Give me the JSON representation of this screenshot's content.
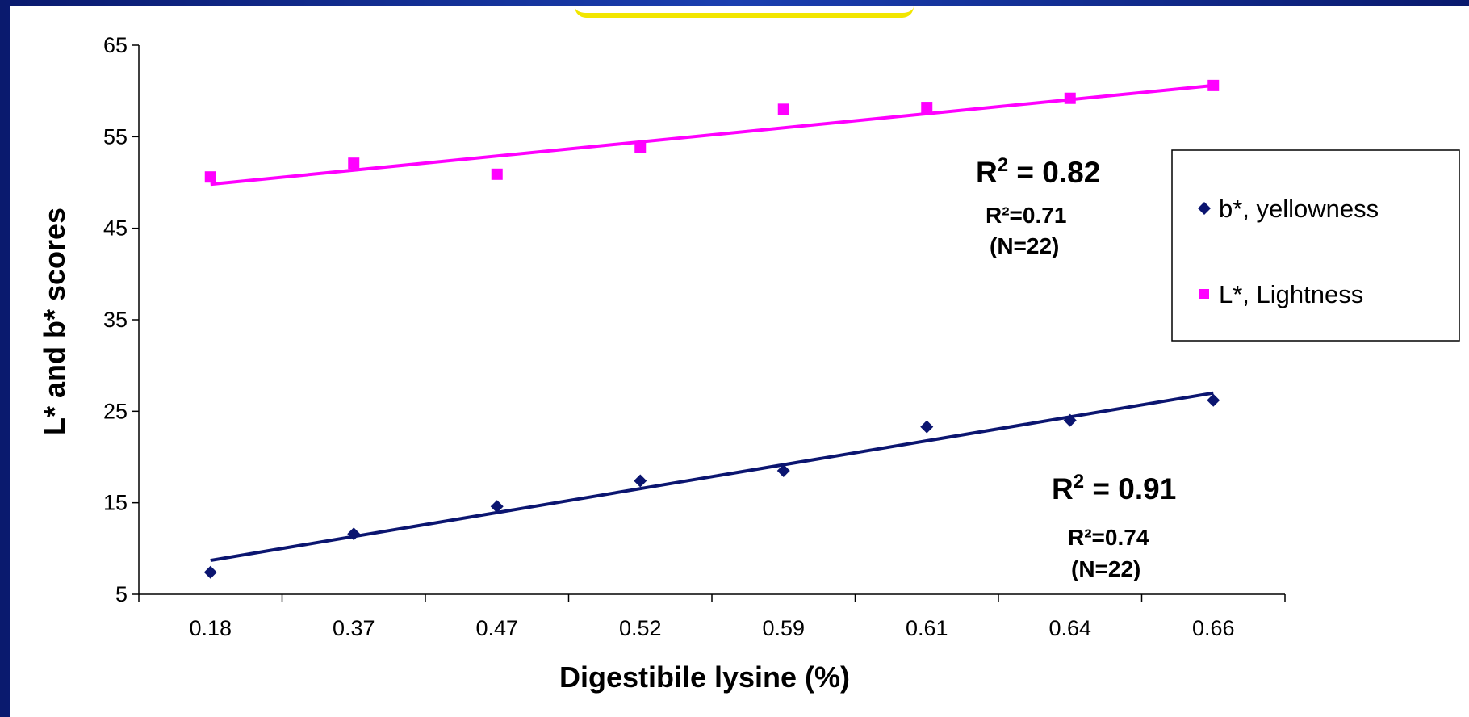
{
  "chart_data": {
    "type": "scatter",
    "title": "",
    "xlabel": "Digestibile lysine (%)",
    "ylabel": "L* and b* scores",
    "categories": [
      "0.18",
      "0.37",
      "0.47",
      "0.52",
      "0.59",
      "0.61",
      "0.64",
      "0.66"
    ],
    "ylim": [
      5,
      65
    ],
    "yticks": [
      "5",
      "15",
      "25",
      "35",
      "45",
      "55",
      "65"
    ],
    "grid": false,
    "legend_position": "right",
    "series": [
      {
        "name": "b*, yellowness",
        "marker": "diamond",
        "color": "#0b1570",
        "values": [
          7.4,
          11.6,
          14.6,
          17.4,
          18.5,
          23.3,
          24.0,
          26.2
        ],
        "trendline": [
          8.7,
          27.0
        ]
      },
      {
        "name": "L*, Lightness",
        "marker": "square",
        "color": "#ff00ff",
        "values": [
          50.6,
          52.1,
          50.9,
          53.8,
          58.0,
          58.2,
          59.2,
          60.6
        ],
        "trendline": [
          49.8,
          60.6
        ]
      }
    ],
    "annotations": {
      "l_r2_main": "0.82",
      "l_r2_sub": "R²=0.71",
      "l_n": "(N=22)",
      "b_r2_main": "0.91",
      "b_r2_sub": "R²=0.74",
      "b_n": "(N=22)"
    }
  }
}
